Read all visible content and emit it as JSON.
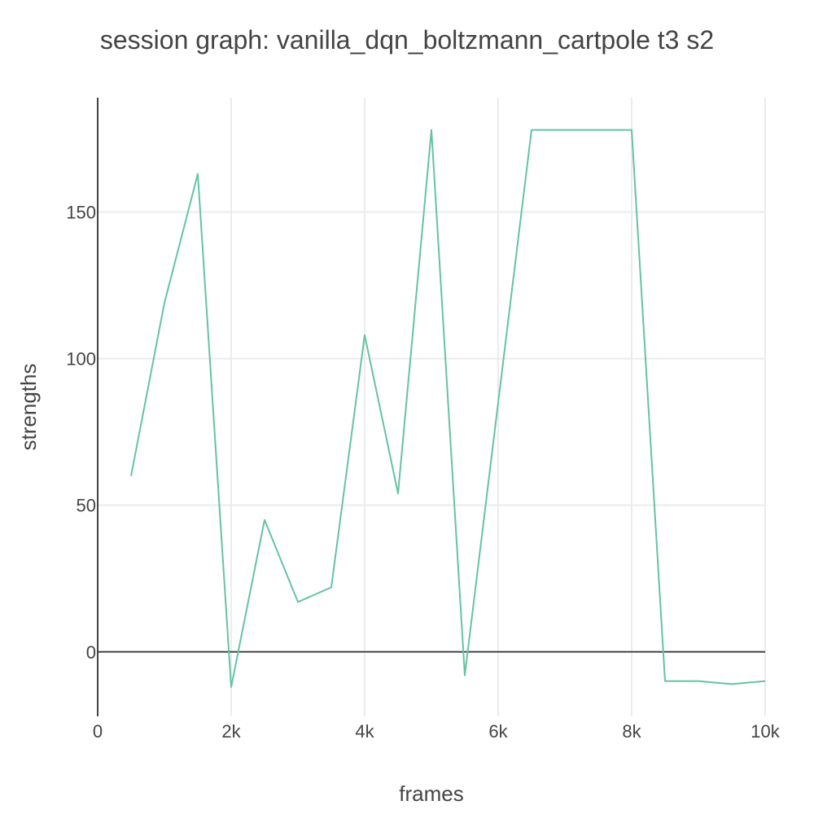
{
  "colors": {
    "series": "#66c2a5",
    "text": "#444444",
    "grid": "#ebebeb",
    "axis": "#444444"
  },
  "chart_data": {
    "type": "line",
    "title": "session graph: vanilla_dqn_boltzmann_cartpole t3 s2",
    "xlabel": "frames",
    "ylabel": "strengths",
    "xlim": [
      0,
      10000
    ],
    "ylim": [
      -22,
      189
    ],
    "grid": true,
    "legend": "none",
    "x_ticks": [
      {
        "value": 0,
        "label": "0"
      },
      {
        "value": 2000,
        "label": "2k"
      },
      {
        "value": 4000,
        "label": "4k"
      },
      {
        "value": 6000,
        "label": "6k"
      },
      {
        "value": 8000,
        "label": "8k"
      },
      {
        "value": 10000,
        "label": "10k"
      }
    ],
    "y_ticks": [
      {
        "value": 0,
        "label": "0"
      },
      {
        "value": 50,
        "label": "50"
      },
      {
        "value": 100,
        "label": "100"
      },
      {
        "value": 150,
        "label": "150"
      }
    ],
    "series": [
      {
        "x": [
          500,
          1000,
          1500,
          2000,
          2500,
          3000,
          3500,
          4000,
          4500,
          5000,
          5500,
          6000,
          6500,
          7000,
          7500,
          8000,
          8500,
          9000,
          9500,
          10000
        ],
        "values": [
          60,
          119,
          163,
          -12,
          45,
          17,
          22,
          108,
          54,
          178,
          -8,
          85,
          178,
          178,
          178,
          178,
          -10,
          -10,
          -11,
          -10
        ]
      }
    ]
  }
}
